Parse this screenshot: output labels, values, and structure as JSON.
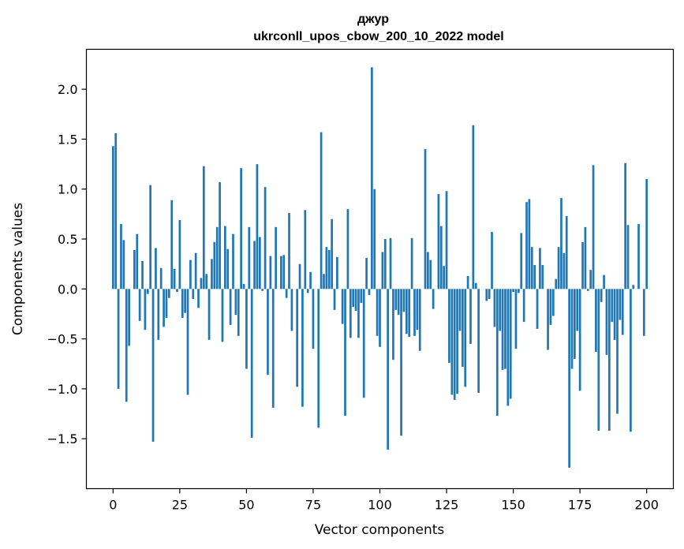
{
  "chart_data": {
    "type": "bar",
    "title": "джур",
    "subtitle": "ukrconll_upos_cbow_200_10_2022 model",
    "xlabel": "Vector components",
    "ylabel": "Components values",
    "xlim": [
      -10,
      210
    ],
    "ylim": [
      -2.0,
      2.4
    ],
    "xticks": [
      0,
      25,
      50,
      75,
      100,
      125,
      150,
      175,
      200
    ],
    "yticks": [
      -1.5,
      -1.0,
      -0.5,
      0.0,
      0.5,
      1.0,
      1.5,
      2.0
    ],
    "xtick_labels": [
      "0",
      "25",
      "50",
      "75",
      "100",
      "125",
      "150",
      "175",
      "200"
    ],
    "ytick_labels": [
      "−1.5",
      "−1.0",
      "−0.5",
      "0.0",
      "0.5",
      "1.0",
      "1.5",
      "2.0"
    ],
    "bar_color": "#1f77b4",
    "grid": false,
    "values": [
      1.43,
      1.56,
      -1.0,
      0.65,
      0.49,
      -1.13,
      -0.57,
      0.0,
      0.39,
      0.55,
      -0.32,
      0.28,
      -0.41,
      -0.05,
      1.04,
      -1.53,
      0.41,
      -0.51,
      0.21,
      -0.38,
      -0.29,
      -0.09,
      0.89,
      0.2,
      -0.03,
      0.69,
      -0.29,
      -0.24,
      -1.06,
      0.29,
      -0.1,
      0.36,
      -0.19,
      0.11,
      1.23,
      0.15,
      -0.51,
      0.3,
      0.47,
      0.62,
      1.07,
      -0.53,
      0.63,
      0.4,
      -0.36,
      0.55,
      -0.26,
      -0.47,
      1.21,
      0.05,
      -0.8,
      0.62,
      -1.49,
      0.48,
      1.25,
      0.52,
      -0.02,
      1.02,
      -0.86,
      0.33,
      -1.19,
      0.62,
      0.0,
      0.33,
      0.34,
      -0.09,
      0.76,
      -0.42,
      0.0,
      -0.98,
      0.25,
      -1.18,
      0.79,
      -0.04,
      0.17,
      -0.6,
      0.0,
      -1.39,
      1.57,
      0.15,
      0.42,
      0.39,
      0.7,
      -0.21,
      0.32,
      0.0,
      -0.35,
      -1.27,
      0.8,
      -0.49,
      -0.18,
      -0.22,
      -0.49,
      -0.14,
      -1.09,
      0.31,
      -0.06,
      2.22,
      1.0,
      -0.47,
      -0.58,
      0.37,
      0.5,
      -1.61,
      0.51,
      -0.71,
      -0.21,
      -0.26,
      -1.47,
      -0.23,
      -0.45,
      -0.48,
      0.51,
      -0.47,
      -0.41,
      -0.62,
      0.0,
      1.4,
      0.37,
      0.29,
      -0.2,
      0.0,
      0.95,
      0.63,
      0.23,
      0.98,
      -0.74,
      -1.06,
      -1.11,
      -1.05,
      -0.42,
      -0.78,
      -0.98,
      0.13,
      -0.55,
      1.64,
      0.06,
      -1.04,
      0.0,
      0.0,
      -0.12,
      -0.1,
      0.57,
      -0.38,
      -1.27,
      -0.42,
      -0.81,
      -0.8,
      -1.17,
      -1.1,
      -0.03,
      -0.6,
      -0.04,
      0.56,
      -0.33,
      0.87,
      0.9,
      0.42,
      0.24,
      -0.4,
      0.41,
      0.24,
      0.0,
      -0.61,
      -0.36,
      -0.27,
      0.1,
      0.42,
      0.91,
      0.36,
      0.73,
      -1.79,
      -0.8,
      -0.7,
      -0.42,
      -1.02,
      0.47,
      0.62,
      -0.02,
      0.19,
      1.24,
      -0.63,
      -1.42,
      -0.13,
      0.14,
      -0.66,
      -1.42,
      -0.33,
      -0.51,
      -1.25,
      -0.31,
      -0.46,
      1.26,
      0.64,
      -1.43,
      0.04,
      0.0,
      0.65,
      0.0,
      -0.47,
      1.1
    ]
  }
}
